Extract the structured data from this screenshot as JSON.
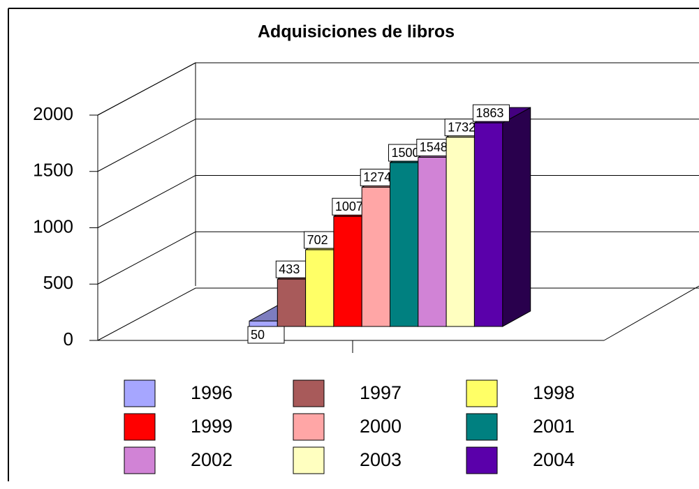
{
  "chart_data": {
    "type": "bar3d",
    "title": "Adquisiciones de libros",
    "series": [
      {
        "name": "1996",
        "color": "#a6a6ff",
        "values": [
          50
        ]
      },
      {
        "name": "1997",
        "color": "#a85a5a",
        "values": [
          433
        ]
      },
      {
        "name": "1998",
        "color": "#ffff66",
        "values": [
          702
        ]
      },
      {
        "name": "1999",
        "color": "#ff0000",
        "values": [
          1007
        ]
      },
      {
        "name": "2000",
        "color": "#ffa6a6",
        "values": [
          1274
        ]
      },
      {
        "name": "2001",
        "color": "#008080",
        "values": [
          1500
        ]
      },
      {
        "name": "2002",
        "color": "#d183d6",
        "values": [
          1548
        ]
      },
      {
        "name": "2003",
        "color": "#ffffc0",
        "values": [
          1732
        ]
      },
      {
        "name": "2004",
        "color": "#5a00aa",
        "values": [
          1863
        ]
      }
    ],
    "ylim": [
      0,
      2000
    ],
    "yticks": [
      0,
      500,
      1000,
      1500,
      2000
    ],
    "grid": true
  }
}
